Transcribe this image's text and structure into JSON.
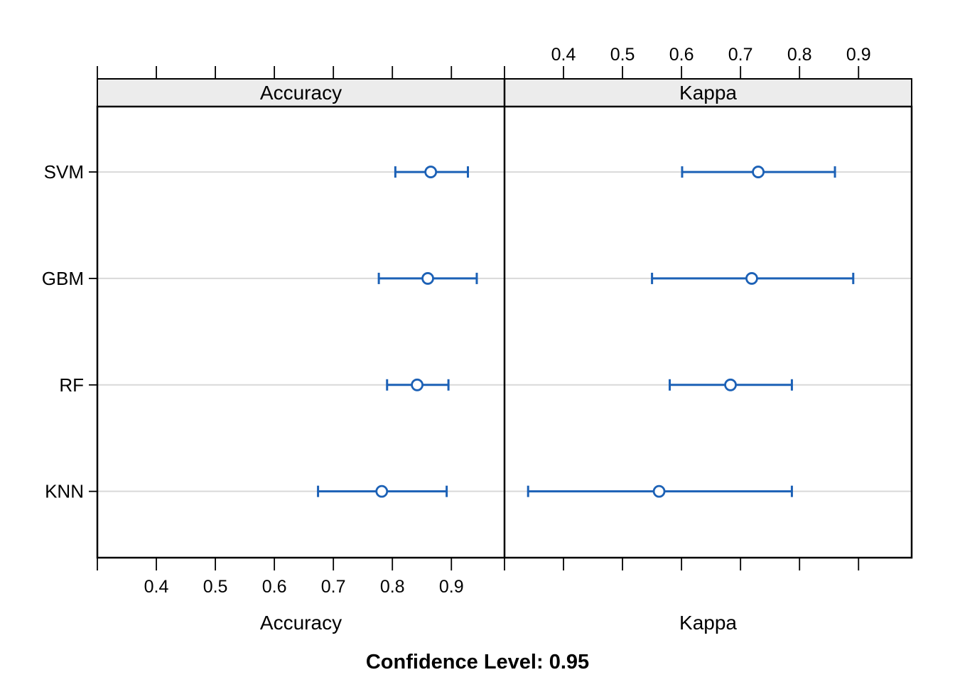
{
  "figure": {
    "background": "#ffffff",
    "sub_title": "Confidence Level: 0.95"
  },
  "chart_data": {
    "type": "scatter",
    "subtype": "dotplot-confidence-intervals",
    "title": "",
    "sub": "Confidence Level: 0.95",
    "confidence_level": 0.95,
    "models_top_to_bottom": [
      "SVM",
      "GBM",
      "RF",
      "KNN"
    ],
    "xlim": [
      0.3,
      0.99
    ],
    "x_ticks": [
      0.3,
      0.4,
      0.5,
      0.6,
      0.7,
      0.8,
      0.9
    ],
    "x_tick_labels": [
      "0.4",
      "0.5",
      "0.6",
      "0.7",
      "0.8",
      "0.9"
    ],
    "x_tick_label_values": [
      0.4,
      0.5,
      0.6,
      0.7,
      0.8,
      0.9
    ],
    "grid": "horizontal-row-lines",
    "legend": "none",
    "panels": [
      {
        "strip_label": "Accuracy",
        "xlabel": "Accuracy",
        "tick_labels_side": "bottom",
        "series": [
          {
            "model": "SVM",
            "lower": 0.805,
            "mean": 0.865,
            "upper": 0.928
          },
          {
            "model": "GBM",
            "lower": 0.777,
            "mean": 0.86,
            "upper": 0.943
          },
          {
            "model": "RF",
            "lower": 0.791,
            "mean": 0.842,
            "upper": 0.895
          },
          {
            "model": "KNN",
            "lower": 0.674,
            "mean": 0.782,
            "upper": 0.892
          }
        ]
      },
      {
        "strip_label": "Kappa",
        "xlabel": "Kappa",
        "tick_labels_side": "top",
        "series": [
          {
            "model": "SVM",
            "lower": 0.601,
            "mean": 0.73,
            "upper": 0.86
          },
          {
            "model": "GBM",
            "lower": 0.55,
            "mean": 0.719,
            "upper": 0.891
          },
          {
            "model": "RF",
            "lower": 0.58,
            "mean": 0.683,
            "upper": 0.787
          },
          {
            "model": "KNN",
            "lower": 0.34,
            "mean": 0.562,
            "upper": 0.787
          }
        ]
      }
    ],
    "colors": {
      "interval": "#1c61b6",
      "point_fill": "#ffffff",
      "strip_bg": "#ececec",
      "grid_line": "#d9d9d9",
      "border": "#000000",
      "background": "#ffffff"
    }
  }
}
